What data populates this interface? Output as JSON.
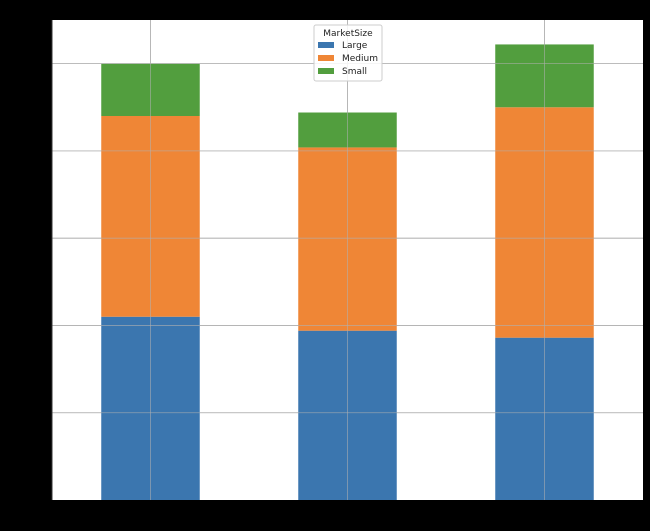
{
  "chart_data": {
    "type": "bar",
    "stacked": true,
    "categories": [
      "",
      "",
      ""
    ],
    "series": [
      {
        "name": "Large",
        "color": "#3b76af",
        "values": [
          2100,
          1940,
          1860
        ]
      },
      {
        "name": "Medium",
        "color": "#ef8636",
        "values": [
          2300,
          2100,
          2640
        ]
      },
      {
        "name": "Small",
        "color": "#529e3e",
        "values": [
          600,
          400,
          720
        ]
      }
    ],
    "ylim": [
      0,
      5500
    ],
    "grid": true,
    "legend": {
      "title": "MarketSize",
      "placement": "top-center"
    }
  }
}
